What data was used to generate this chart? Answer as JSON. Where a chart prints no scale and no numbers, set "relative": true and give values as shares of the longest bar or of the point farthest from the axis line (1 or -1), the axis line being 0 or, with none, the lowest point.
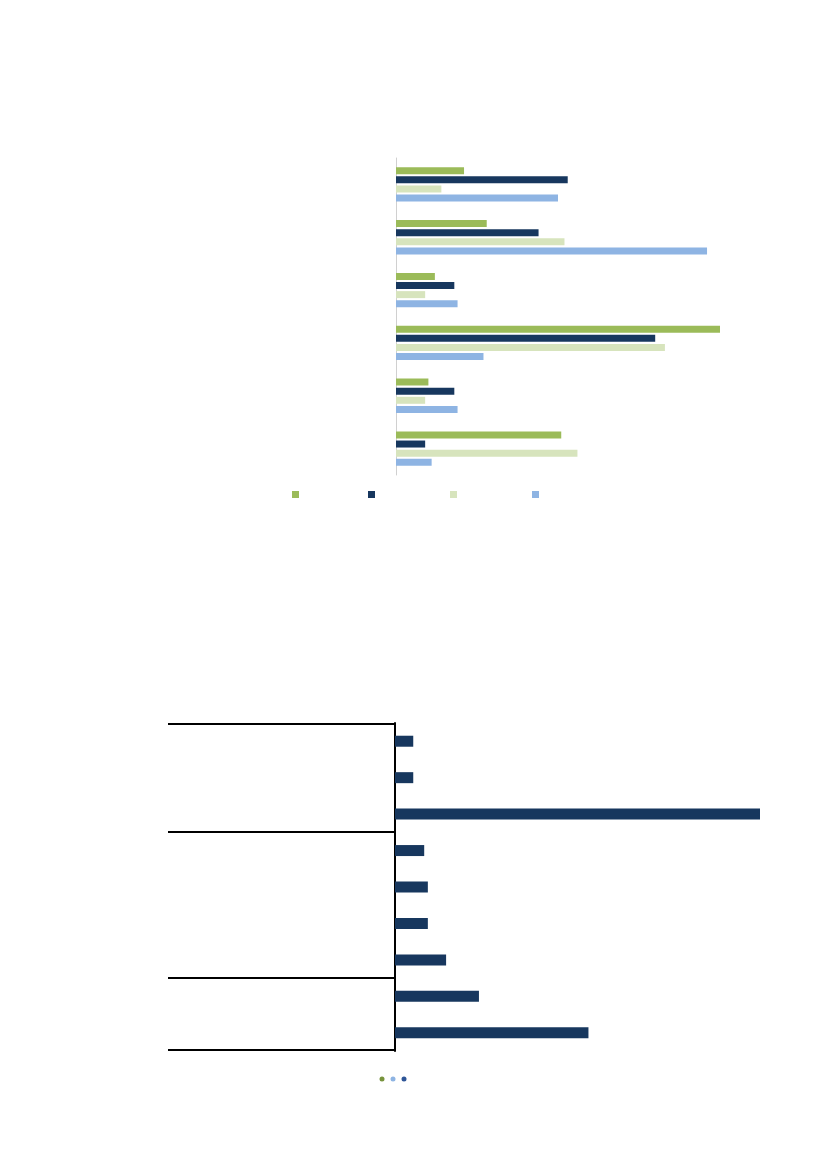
{
  "chart_data": [
    {
      "type": "bar",
      "orientation": "horizontal",
      "relative": true,
      "categories": [
        null,
        null,
        null,
        null,
        null,
        null
      ],
      "series": [
        {
          "color": "#9bbb59",
          "values": [
            0.21,
            0.28,
            0.12,
            1,
            0.1,
            0.51
          ]
        },
        {
          "color": "#17375e",
          "values": [
            0.53,
            0.44,
            0.18,
            0.8,
            0.18,
            0.09
          ]
        },
        {
          "color": "#d7e4bd",
          "values": [
            0.14,
            0.52,
            0.09,
            0.83,
            0.09,
            0.56
          ]
        },
        {
          "color": "#8eb4e3",
          "values": [
            0.5,
            0.96,
            0.19,
            0.27,
            0.19,
            0.11
          ]
        }
      ]
    },
    {
      "type": "bar",
      "orientation": "horizontal",
      "relative": true,
      "categories": [
        null,
        null,
        null,
        null,
        null,
        null,
        null,
        null,
        null
      ],
      "series": [
        {
          "color": "#17375e",
          "values": [
            0.05,
            0.05,
            1,
            0.08,
            0.09,
            0.09,
            0.14,
            0.23,
            0.53
          ]
        }
      ]
    }
  ]
}
